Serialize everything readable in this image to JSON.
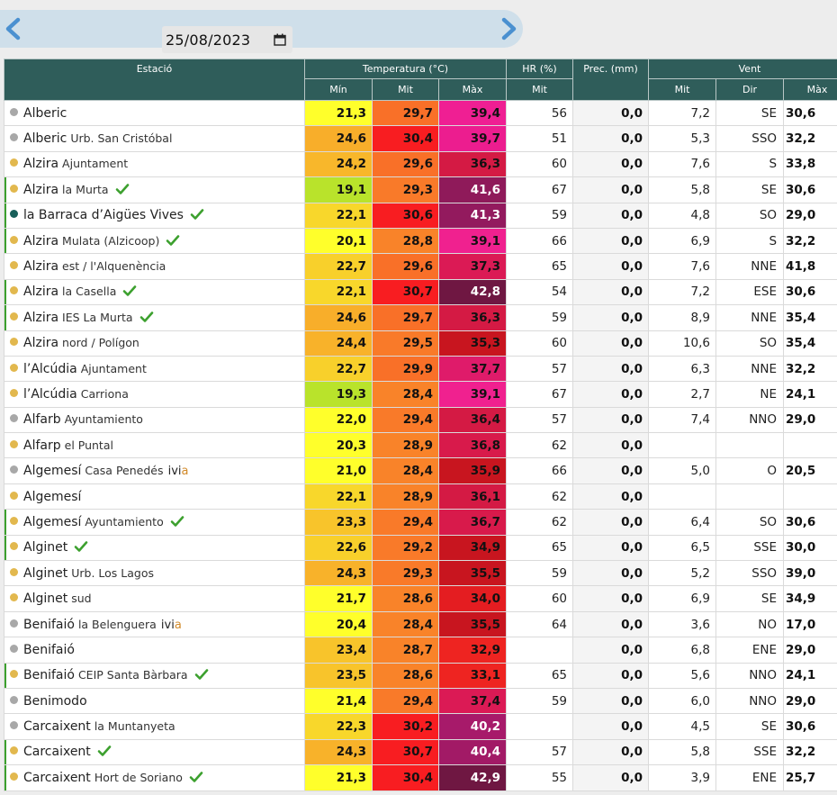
{
  "date_selector": {
    "value": "25/08/2023"
  },
  "icons": {
    "prev": "chevron-left-icon",
    "next": "chevron-right-icon",
    "calendar": "calendar-icon",
    "verified": "check-icon"
  },
  "colors": {
    "header_bg": "#2f5d5a",
    "dot_yellow": "#e2b84e",
    "dot_gray": "#a8a8a8",
    "dot_teal": "#185f5a",
    "verified_green": "#3ca02e",
    "arrow_blue": "#4a90d0"
  },
  "table": {
    "group_headers": {
      "station": "Estació",
      "temperature": "Temperatura (°C)",
      "humidity": "HR (%)",
      "precip": "Prec. (mm)",
      "wind": "Vent"
    },
    "sub_headers": {
      "t_min": "Mín",
      "t_avg": "Mit",
      "t_max": "Màx",
      "hr_avg": "Mit",
      "wind_avg": "Mit",
      "wind_dir": "Dir",
      "wind_max": "Màx"
    },
    "rows": [
      {
        "name": "Alberic",
        "sub": "",
        "dot": "gray",
        "check": false,
        "ivia": false,
        "tmin": "21,3",
        "tmin_c": "#ffff2b",
        "tavg": "29,7",
        "tavg_c": "#f97028",
        "tmax": "39,4",
        "tmax_c": "#ef1f93",
        "hr": "56",
        "prec": "0,0",
        "wavg": "7,2",
        "wdir": "SE",
        "wmax": "30,6"
      },
      {
        "name": "Alberic",
        "sub": "Urb. San Cristóbal",
        "dot": "gray",
        "check": false,
        "ivia": false,
        "tmin": "24,6",
        "tmin_c": "#f8ae2a",
        "tavg": "30,4",
        "tavg_c": "#f81d21",
        "tmax": "39,7",
        "tmax_c": "#ec1d8f",
        "hr": "51",
        "prec": "0,0",
        "wavg": "5,3",
        "wdir": "SSO",
        "wmax": "32,2"
      },
      {
        "name": "Alzira",
        "sub": "Ajuntament",
        "dot": "yellow",
        "check": false,
        "ivia": false,
        "tmin": "24,2",
        "tmin_c": "#f8b72b",
        "tavg": "29,6",
        "tavg_c": "#f97028",
        "tmax": "36,3",
        "tmax_c": "#d41a44",
        "hr": "60",
        "prec": "0,0",
        "wavg": "7,6",
        "wdir": "S",
        "wmax": "33,8"
      },
      {
        "name": "Alzira",
        "sub": "la Murta",
        "dot": "yellow",
        "check": true,
        "ivia": false,
        "tmin": "19,1",
        "tmin_c": "#b9e32b",
        "tavg": "29,3",
        "tavg_c": "#f97a29",
        "tmax": "41,6",
        "tmax_c": "#8f1a5a",
        "hr": "67",
        "prec": "0,0",
        "wavg": "5,8",
        "wdir": "SE",
        "wmax": "30,6"
      },
      {
        "name": "la Barraca d’Aigües Vives",
        "sub": "",
        "dot": "teal",
        "check": true,
        "ivia": false,
        "tmin": "22,1",
        "tmin_c": "#f8d72b",
        "tavg": "30,6",
        "tavg_c": "#f81d21",
        "tmax": "41,3",
        "tmax_c": "#931a5e",
        "hr": "59",
        "prec": "0,0",
        "wavg": "4,8",
        "wdir": "SO",
        "wmax": "29,0"
      },
      {
        "name": "Alzira",
        "sub": "Mulata (Alzicoop)",
        "dot": "yellow",
        "check": true,
        "ivia": false,
        "tmin": "20,1",
        "tmin_c": "#ffff2b",
        "tavg": "28,8",
        "tavg_c": "#f98329",
        "tmax": "39,1",
        "tmax_c": "#f0218f",
        "hr": "66",
        "prec": "0,0",
        "wavg": "6,9",
        "wdir": "S",
        "wmax": "32,2"
      },
      {
        "name": "Alzira",
        "sub": "est / l'Alquenència",
        "dot": "yellow",
        "check": false,
        "ivia": false,
        "tmin": "22,7",
        "tmin_c": "#f8d02b",
        "tavg": "29,6",
        "tavg_c": "#f97028",
        "tmax": "37,3",
        "tmax_c": "#db1a55",
        "hr": "65",
        "prec": "0,0",
        "wavg": "7,6",
        "wdir": "NNE",
        "wmax": "41,8"
      },
      {
        "name": "Alzira",
        "sub": "la Casella",
        "dot": "yellow",
        "check": true,
        "ivia": false,
        "tmin": "22,1",
        "tmin_c": "#f8d72b",
        "tavg": "30,7",
        "tavg_c": "#f81d21",
        "tmax": "42,8",
        "tmax_c": "#6f1742",
        "hr": "54",
        "prec": "0,0",
        "wavg": "7,2",
        "wdir": "ESE",
        "wmax": "30,6"
      },
      {
        "name": "Alzira",
        "sub": "IES La Murta",
        "dot": "yellow",
        "check": true,
        "ivia": false,
        "tmin": "24,6",
        "tmin_c": "#f8ae2a",
        "tavg": "29,7",
        "tavg_c": "#f97028",
        "tmax": "36,3",
        "tmax_c": "#d41a44",
        "hr": "59",
        "prec": "0,0",
        "wavg": "8,9",
        "wdir": "NNE",
        "wmax": "35,4"
      },
      {
        "name": "Alzira",
        "sub": "nord / Polígon",
        "dot": "yellow",
        "check": false,
        "ivia": false,
        "tmin": "24,4",
        "tmin_c": "#f8b22a",
        "tavg": "29,5",
        "tavg_c": "#f97a29",
        "tmax": "35,3",
        "tmax_c": "#c8151f",
        "hr": "60",
        "prec": "0,0",
        "wavg": "10,6",
        "wdir": "SO",
        "wmax": "35,4"
      },
      {
        "name": "l’Alcúdia",
        "sub": "Ajuntament",
        "dot": "yellow",
        "check": false,
        "ivia": false,
        "tmin": "22,7",
        "tmin_c": "#f8d02b",
        "tavg": "29,9",
        "tavg_c": "#f97028",
        "tmax": "37,7",
        "tmax_c": "#df1b6a",
        "hr": "57",
        "prec": "0,0",
        "wavg": "6,3",
        "wdir": "NNE",
        "wmax": "32,2"
      },
      {
        "name": "l’Alcúdia",
        "sub": "Carriona",
        "dot": "yellow",
        "check": false,
        "ivia": false,
        "tmin": "19,3",
        "tmin_c": "#b9e32b",
        "tavg": "28,4",
        "tavg_c": "#f98329",
        "tmax": "39,1",
        "tmax_c": "#f0218f",
        "hr": "67",
        "prec": "0,0",
        "wavg": "2,7",
        "wdir": "NE",
        "wmax": "24,1"
      },
      {
        "name": "Alfarb",
        "sub": "Ayuntamiento",
        "dot": "gray",
        "check": false,
        "ivia": false,
        "tmin": "22,0",
        "tmin_c": "#ffff2b",
        "tavg": "29,4",
        "tavg_c": "#f97a29",
        "tmax": "36,4",
        "tmax_c": "#d41a44",
        "hr": "57",
        "prec": "0,0",
        "wavg": "7,4",
        "wdir": "NNO",
        "wmax": "29,0"
      },
      {
        "name": "Alfarp",
        "sub": "el Puntal",
        "dot": "yellow",
        "check": false,
        "ivia": false,
        "tmin": "20,3",
        "tmin_c": "#ffff2b",
        "tavg": "28,9",
        "tavg_c": "#f98329",
        "tmax": "36,8",
        "tmax_c": "#d81a4b",
        "hr": "62",
        "prec": "0,0",
        "wavg": "",
        "wdir": "",
        "wmax": ""
      },
      {
        "name": "Algemesí",
        "sub": "Casa Penedés",
        "dot": "gray",
        "check": false,
        "ivia": true,
        "tmin": "21,0",
        "tmin_c": "#ffff2b",
        "tavg": "28,4",
        "tavg_c": "#f98329",
        "tmax": "35,9",
        "tmax_c": "#c8151f",
        "hr": "66",
        "prec": "0,0",
        "wavg": "5,0",
        "wdir": "O",
        "wmax": "20,5"
      },
      {
        "name": "Algemesí",
        "sub": "",
        "dot": "yellow",
        "check": false,
        "ivia": false,
        "tmin": "22,1",
        "tmin_c": "#f8d72b",
        "tavg": "28,9",
        "tavg_c": "#f98329",
        "tmax": "36,1",
        "tmax_c": "#d41a44",
        "hr": "62",
        "prec": "0,0",
        "wavg": "",
        "wdir": "",
        "wmax": ""
      },
      {
        "name": "Algemesí",
        "sub": "Ayuntamiento",
        "dot": "yellow",
        "check": true,
        "ivia": false,
        "tmin": "23,3",
        "tmin_c": "#f8c42b",
        "tavg": "29,4",
        "tavg_c": "#f97a29",
        "tmax": "36,7",
        "tmax_c": "#d81a4b",
        "hr": "62",
        "prec": "0,0",
        "wavg": "6,4",
        "wdir": "SO",
        "wmax": "30,6"
      },
      {
        "name": "Alginet",
        "sub": "",
        "dot": "yellow",
        "check": true,
        "ivia": false,
        "tmin": "22,6",
        "tmin_c": "#f8d02b",
        "tavg": "29,2",
        "tavg_c": "#f97a29",
        "tmax": "34,9",
        "tmax_c": "#c8151f",
        "hr": "65",
        "prec": "0,0",
        "wavg": "6,5",
        "wdir": "SSE",
        "wmax": "30,0"
      },
      {
        "name": "Alginet",
        "sub": "Urb. Los Lagos",
        "dot": "yellow",
        "check": false,
        "ivia": false,
        "tmin": "24,3",
        "tmin_c": "#f8b22a",
        "tavg": "29,3",
        "tavg_c": "#f97a29",
        "tmax": "35,5",
        "tmax_c": "#c8151f",
        "hr": "59",
        "prec": "0,0",
        "wavg": "5,2",
        "wdir": "SSO",
        "wmax": "39,0"
      },
      {
        "name": "Alginet",
        "sub": "sud",
        "dot": "yellow",
        "check": false,
        "ivia": false,
        "tmin": "21,7",
        "tmin_c": "#ffff2b",
        "tavg": "28,6",
        "tavg_c": "#f98329",
        "tmax": "34,0",
        "tmax_c": "#e41d21",
        "hr": "60",
        "prec": "0,0",
        "wavg": "6,9",
        "wdir": "SE",
        "wmax": "34,9"
      },
      {
        "name": "Benifaió",
        "sub": "la Belenguera",
        "dot": "gray",
        "check": false,
        "ivia": true,
        "tmin": "20,4",
        "tmin_c": "#ffff2b",
        "tavg": "28,4",
        "tavg_c": "#f98329",
        "tmax": "35,5",
        "tmax_c": "#c8151f",
        "hr": "64",
        "prec": "0,0",
        "wavg": "3,6",
        "wdir": "NO",
        "wmax": "17,0"
      },
      {
        "name": "Benifaió",
        "sub": "",
        "dot": "gray",
        "check": false,
        "ivia": false,
        "tmin": "23,4",
        "tmin_c": "#f8c42b",
        "tavg": "28,7",
        "tavg_c": "#f98329",
        "tmax": "32,9",
        "tmax_c": "#ee2421",
        "hr": "",
        "prec": "0,0",
        "wavg": "6,8",
        "wdir": "ENE",
        "wmax": "29,0"
      },
      {
        "name": "Benifaió",
        "sub": "CEIP Santa Bàrbara",
        "dot": "yellow",
        "check": true,
        "ivia": false,
        "tmin": "23,5",
        "tmin_c": "#f8c42b",
        "tavg": "28,6",
        "tavg_c": "#f98329",
        "tmax": "33,1",
        "tmax_c": "#ee2421",
        "hr": "65",
        "prec": "0,0",
        "wavg": "5,6",
        "wdir": "NNO",
        "wmax": "24,1"
      },
      {
        "name": "Benimodo",
        "sub": "",
        "dot": "gray",
        "check": false,
        "ivia": false,
        "tmin": "21,4",
        "tmin_c": "#ffff2b",
        "tavg": "29,4",
        "tavg_c": "#f97a29",
        "tmax": "37,4",
        "tmax_c": "#db1a55",
        "hr": "59",
        "prec": "0,0",
        "wavg": "6,0",
        "wdir": "NNO",
        "wmax": "29,0"
      },
      {
        "name": "Carcaixent",
        "sub": "la Muntanyeta",
        "dot": "gray",
        "check": false,
        "ivia": false,
        "tmin": "22,3",
        "tmin_c": "#f8d72b",
        "tavg": "30,2",
        "tavg_c": "#f81d21",
        "tmax": "40,2",
        "tmax_c": "#a71a6a",
        "hr": "",
        "prec": "0,0",
        "wavg": "4,5",
        "wdir": "SE",
        "wmax": "30,6"
      },
      {
        "name": "Carcaixent",
        "sub": "",
        "dot": "yellow",
        "check": true,
        "ivia": false,
        "tmin": "24,3",
        "tmin_c": "#f8b22a",
        "tavg": "30,7",
        "tavg_c": "#f81d21",
        "tmax": "40,4",
        "tmax_c": "#a21a66",
        "hr": "57",
        "prec": "0,0",
        "wavg": "5,8",
        "wdir": "SSE",
        "wmax": "32,2"
      },
      {
        "name": "Carcaixent",
        "sub": "Hort de Soriano",
        "dot": "yellow",
        "check": true,
        "ivia": false,
        "tmin": "21,3",
        "tmin_c": "#ffff2b",
        "tavg": "30,4",
        "tavg_c": "#f81d21",
        "tmax": "42,9",
        "tmax_c": "#6f1742",
        "hr": "55",
        "prec": "0,0",
        "wavg": "3,9",
        "wdir": "ENE",
        "wmax": "25,7"
      }
    ]
  }
}
